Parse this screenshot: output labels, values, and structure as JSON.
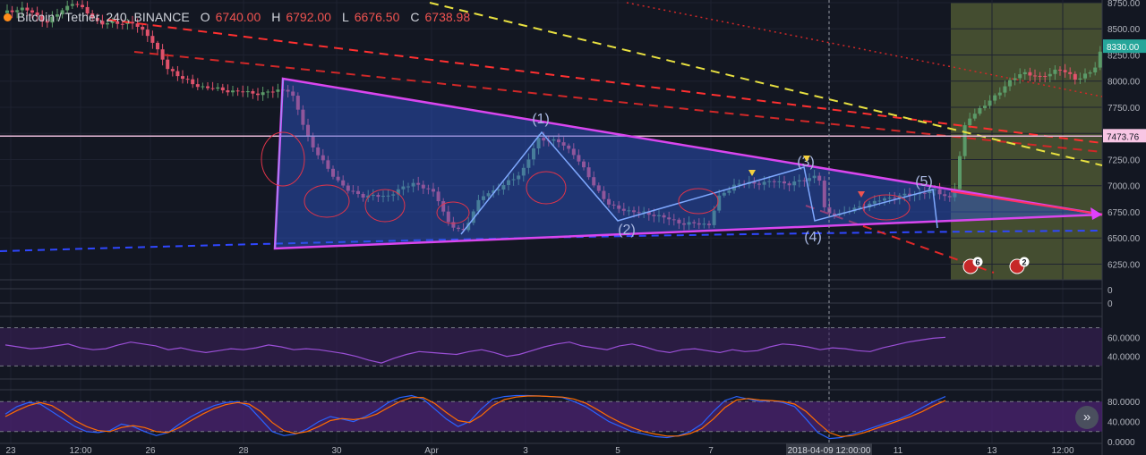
{
  "header": {
    "symbol": "Bitcoin / Tether, 240, BINANCE",
    "open_label": "O",
    "open": "6740.00",
    "high_label": "H",
    "high": "6792.00",
    "low_label": "L",
    "low": "6676.50",
    "close_label": "C",
    "close": "6738.98"
  },
  "colors": {
    "up": "#5b9a68",
    "down": "#e0526b",
    "accent": "#e040fb",
    "background": "#131722"
  },
  "price_tags": {
    "last": "8330.00",
    "level": "7473.76"
  },
  "crosshair_time": "2018-04-09 12:00:00",
  "wave_labels": [
    "(1)",
    "(2)",
    "(3)",
    "(4)",
    "(5)"
  ],
  "event_badges": [
    "6",
    "2"
  ],
  "nav_icon": "double-chevron-right-icon",
  "chart_data": [
    {
      "type": "candlestick",
      "title": "Bitcoin / Tether, 240, BINANCE",
      "x_ticks": [
        "23",
        "12:00",
        "26",
        "28",
        "30",
        "Apr",
        "3",
        "5",
        "7",
        "2018-04-09 12:00:00",
        "11",
        "13",
        "12:00"
      ],
      "y_ticks": [
        "8750.00",
        "8500.00",
        "8250.00",
        "8000.00",
        "7750.00",
        "7500.00",
        "7250.00",
        "7000.00",
        "6750.00",
        "6500.00",
        "6250.00"
      ],
      "ylim": [
        6100,
        8750
      ],
      "horizontal_line": 7473.76,
      "last_price": 8330,
      "anchors": [
        [
          0,
          8650
        ],
        [
          25,
          8700
        ],
        [
          50,
          8560
        ],
        [
          80,
          8760
        ],
        [
          110,
          8550
        ],
        [
          145,
          8560
        ],
        [
          165,
          8430
        ],
        [
          185,
          8120
        ],
        [
          215,
          7960
        ],
        [
          250,
          7910
        ],
        [
          290,
          7880
        ],
        [
          318,
          7930
        ],
        [
          325,
          7850
        ],
        [
          345,
          7400
        ],
        [
          365,
          7150
        ],
        [
          385,
          6960
        ],
        [
          405,
          6900
        ],
        [
          430,
          6900
        ],
        [
          460,
          7030
        ],
        [
          485,
          6920
        ],
        [
          500,
          6620
        ],
        [
          515,
          6560
        ],
        [
          535,
          6890
        ],
        [
          560,
          7000
        ],
        [
          580,
          7120
        ],
        [
          600,
          7450
        ],
        [
          620,
          7430
        ],
        [
          640,
          7300
        ],
        [
          660,
          7020
        ],
        [
          680,
          6800
        ],
        [
          700,
          6760
        ],
        [
          730,
          6720
        ],
        [
          760,
          6640
        ],
        [
          790,
          6630
        ],
        [
          800,
          6880
        ],
        [
          820,
          7020
        ],
        [
          840,
          7020
        ],
        [
          860,
          7040
        ],
        [
          880,
          7020
        ],
        [
          900,
          7060
        ],
        [
          912,
          7120
        ],
        [
          920,
          6720
        ],
        [
          940,
          6740
        ],
        [
          960,
          6800
        ],
        [
          980,
          6860
        ],
        [
          1000,
          6900
        ],
        [
          1020,
          6920
        ],
        [
          1040,
          6960
        ],
        [
          1060,
          6880
        ],
        [
          1068,
          7050
        ],
        [
          1072,
          7500
        ],
        [
          1080,
          7650
        ],
        [
          1100,
          7780
        ],
        [
          1120,
          7950
        ],
        [
          1140,
          8090
        ],
        [
          1160,
          8030
        ],
        [
          1180,
          8120
        ],
        [
          1200,
          8020
        ],
        [
          1220,
          8100
        ],
        [
          1229,
          8330
        ]
      ]
    },
    {
      "type": "line",
      "title": "",
      "y_ticks": [
        "60.0000",
        "40.0000"
      ],
      "ylim": [
        20,
        80
      ],
      "values": [
        52,
        50,
        48,
        49,
        51,
        53,
        49,
        47,
        48,
        52,
        55,
        53,
        51,
        47,
        49,
        46,
        44,
        46,
        48,
        47,
        49,
        52,
        50,
        47,
        48,
        47,
        45,
        43,
        40,
        36,
        33,
        38,
        42,
        45,
        44,
        43,
        42,
        45,
        47,
        44,
        40,
        42,
        46,
        50,
        53,
        55,
        51,
        49,
        47,
        51,
        53,
        50,
        46,
        44,
        47,
        48,
        46,
        44,
        47,
        45,
        46,
        50,
        53,
        52,
        50,
        47,
        49,
        48,
        46,
        45,
        49,
        52,
        55,
        57,
        59,
        60
      ]
    },
    {
      "type": "line",
      "title": "",
      "y_ticks": [
        "80.0000",
        "40.0000",
        "0.0000"
      ],
      "ylim": [
        0,
        100
      ],
      "series": [
        {
          "values": [
            55,
            70,
            78,
            75,
            60,
            45,
            30,
            20,
            18,
            22,
            35,
            30,
            20,
            12,
            18,
            35,
            50,
            62,
            72,
            78,
            80,
            70,
            45,
            20,
            12,
            15,
            25,
            40,
            50,
            45,
            40,
            50,
            62,
            78,
            88,
            92,
            85,
            65,
            45,
            30,
            40,
            65,
            85,
            90,
            92,
            92,
            91,
            90,
            88,
            80,
            70,
            55,
            40,
            30,
            20,
            15,
            10,
            8,
            12,
            20,
            35,
            60,
            82,
            90,
            85,
            80,
            82,
            78,
            70,
            45,
            18,
            6,
            8,
            15,
            22,
            30,
            38,
            45,
            55,
            68,
            80,
            90
          ]
        },
        {
          "values": [
            50,
            62,
            72,
            78,
            72,
            58,
            42,
            30,
            22,
            20,
            28,
            32,
            28,
            20,
            18,
            28,
            42,
            55,
            66,
            74,
            78,
            75,
            60,
            38,
            22,
            16,
            20,
            30,
            42,
            46,
            44,
            47,
            55,
            68,
            80,
            88,
            88,
            76,
            58,
            42,
            38,
            52,
            72,
            84,
            89,
            91,
            91,
            90,
            89,
            85,
            77,
            64,
            50,
            38,
            28,
            20,
            15,
            11,
            11,
            16,
            26,
            45,
            68,
            83,
            86,
            83,
            82,
            80,
            75,
            60,
            38,
            18,
            10,
            12,
            18,
            26,
            34,
            42,
            50,
            60,
            72,
            82
          ]
        }
      ]
    }
  ]
}
